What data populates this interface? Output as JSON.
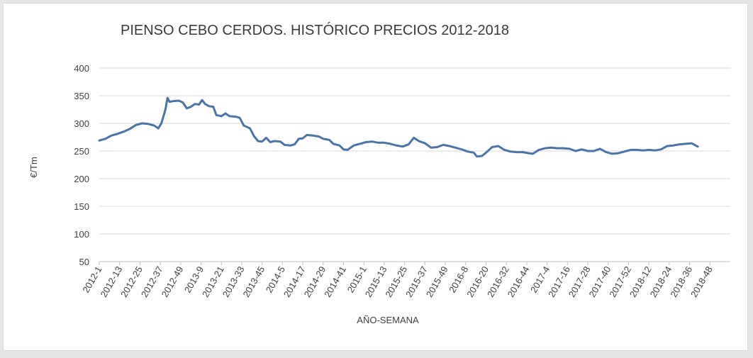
{
  "chart_data": {
    "type": "line",
    "title": "PIENSO CEBO CERDOS. HISTÓRICO PRECIOS 2012-2018",
    "xlabel": "AÑO-SEMANA",
    "ylabel": "€/Tm",
    "ylim": [
      50,
      400
    ],
    "yticks": [
      50,
      100,
      150,
      200,
      250,
      300,
      350,
      400
    ],
    "grid": true,
    "legend": "none",
    "line_color": "#4a74a8",
    "categories": [
      "2012-1",
      "2012-13",
      "2012-25",
      "2012-37",
      "2012-49",
      "2013-9",
      "2013-21",
      "2013-33",
      "2013-45",
      "2014-5",
      "2014-17",
      "2014-29",
      "2014-41",
      "2015-1",
      "2015-13",
      "2015-25",
      "2015-37",
      "2015-49",
      "2016-8",
      "2016-20",
      "2016-32",
      "2016-44",
      "2017-4",
      "2017-16",
      "2017-28",
      "2017-40",
      "2017-52",
      "2018-12",
      "2018-24",
      "2018-36",
      "2018-48"
    ],
    "series": [
      {
        "values": [
          [
            0,
            269
          ],
          [
            0.3,
            272
          ],
          [
            0.6,
            278
          ],
          [
            0.9,
            281
          ],
          [
            1.2,
            285
          ],
          [
            1.5,
            290
          ],
          [
            1.8,
            297
          ],
          [
            2.1,
            300
          ],
          [
            2.4,
            299
          ],
          [
            2.7,
            296
          ],
          [
            2.9,
            291
          ],
          [
            3.05,
            300
          ],
          [
            3.25,
            325
          ],
          [
            3.35,
            346
          ],
          [
            3.45,
            339
          ],
          [
            3.6,
            340
          ],
          [
            3.9,
            341
          ],
          [
            4.1,
            338
          ],
          [
            4.3,
            327
          ],
          [
            4.5,
            330
          ],
          [
            4.7,
            335
          ],
          [
            4.9,
            334
          ],
          [
            5.05,
            342
          ],
          [
            5.2,
            335
          ],
          [
            5.4,
            331
          ],
          [
            5.6,
            330
          ],
          [
            5.75,
            315
          ],
          [
            6.0,
            313
          ],
          [
            6.2,
            318
          ],
          [
            6.4,
            313
          ],
          [
            6.7,
            312
          ],
          [
            6.9,
            310
          ],
          [
            7.1,
            296
          ],
          [
            7.4,
            291
          ],
          [
            7.6,
            277
          ],
          [
            7.8,
            268
          ],
          [
            8.0,
            267
          ],
          [
            8.2,
            274
          ],
          [
            8.4,
            266
          ],
          [
            8.6,
            268
          ],
          [
            8.9,
            267
          ],
          [
            9.1,
            261
          ],
          [
            9.4,
            260
          ],
          [
            9.6,
            262
          ],
          [
            9.8,
            272
          ],
          [
            10.0,
            273
          ],
          [
            10.2,
            279
          ],
          [
            10.5,
            278
          ],
          [
            10.8,
            276
          ],
          [
            11.0,
            272
          ],
          [
            11.3,
            270
          ],
          [
            11.5,
            263
          ],
          [
            11.8,
            260
          ],
          [
            12.0,
            253
          ],
          [
            12.2,
            252
          ],
          [
            12.5,
            260
          ],
          [
            12.8,
            263
          ],
          [
            13.1,
            266
          ],
          [
            13.4,
            267
          ],
          [
            13.7,
            265
          ],
          [
            14.0,
            265
          ],
          [
            14.3,
            263
          ],
          [
            14.6,
            260
          ],
          [
            14.9,
            258
          ],
          [
            15.2,
            262
          ],
          [
            15.45,
            274
          ],
          [
            15.7,
            268
          ],
          [
            16.0,
            264
          ],
          [
            16.3,
            256
          ],
          [
            16.6,
            257
          ],
          [
            16.9,
            261
          ],
          [
            17.2,
            259
          ],
          [
            17.5,
            256
          ],
          [
            17.8,
            253
          ],
          [
            18.1,
            249
          ],
          [
            18.4,
            247
          ],
          [
            18.55,
            240
          ],
          [
            18.8,
            241
          ],
          [
            19.0,
            247
          ],
          [
            19.3,
            257
          ],
          [
            19.6,
            259
          ],
          [
            19.9,
            252
          ],
          [
            20.2,
            249
          ],
          [
            20.5,
            248
          ],
          [
            20.8,
            248
          ],
          [
            21.1,
            246
          ],
          [
            21.3,
            245
          ],
          [
            21.6,
            252
          ],
          [
            21.9,
            255
          ],
          [
            22.2,
            256
          ],
          [
            22.5,
            255
          ],
          [
            22.8,
            255
          ],
          [
            23.1,
            254
          ],
          [
            23.4,
            250
          ],
          [
            23.7,
            253
          ],
          [
            24.0,
            250
          ],
          [
            24.3,
            250
          ],
          [
            24.6,
            254
          ],
          [
            24.9,
            248
          ],
          [
            25.2,
            245
          ],
          [
            25.5,
            246
          ],
          [
            25.8,
            249
          ],
          [
            26.1,
            252
          ],
          [
            26.4,
            252
          ],
          [
            26.7,
            251
          ],
          [
            27.0,
            252
          ],
          [
            27.3,
            251
          ],
          [
            27.6,
            253
          ],
          [
            27.9,
            259
          ],
          [
            28.2,
            260
          ],
          [
            28.5,
            262
          ],
          [
            28.8,
            263
          ],
          [
            29.1,
            264
          ],
          [
            29.4,
            258
          ]
        ]
      }
    ]
  }
}
